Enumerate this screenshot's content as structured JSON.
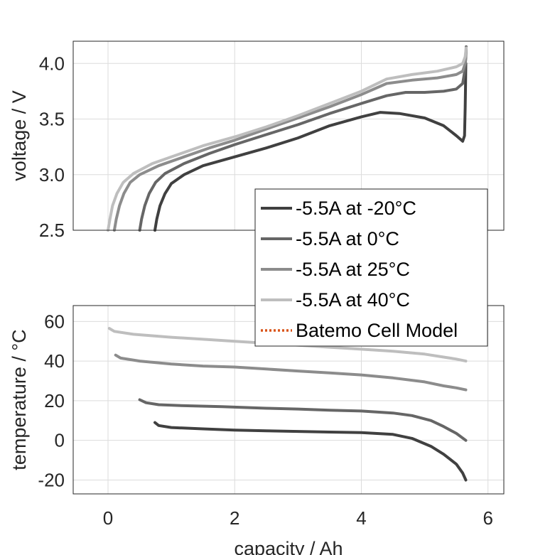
{
  "chart_data": [
    {
      "type": "line",
      "xlabel": "",
      "ylabel": "voltage / V",
      "xlim": [
        -0.55,
        6.25
      ],
      "ylim": [
        2.5,
        4.2
      ],
      "xticks": [
        "0",
        "2",
        "4",
        "6"
      ],
      "yticks": [
        "2.5",
        "3.0",
        "3.5",
        "4.0"
      ],
      "grid": true,
      "legend_position": "bottom-right",
      "series": [
        {
          "name": "-5.5A at -20°C",
          "color": "#404040",
          "x": [
            0.74,
            0.77,
            0.82,
            0.9,
            1.0,
            1.2,
            1.5,
            2.0,
            2.5,
            3.0,
            3.5,
            4.0,
            4.3,
            4.6,
            5.0,
            5.3,
            5.5,
            5.6,
            5.63,
            5.64,
            5.645,
            5.65
          ],
          "y": [
            2.5,
            2.6,
            2.72,
            2.83,
            2.92,
            3.0,
            3.08,
            3.16,
            3.24,
            3.33,
            3.44,
            3.52,
            3.56,
            3.55,
            3.51,
            3.44,
            3.35,
            3.3,
            3.35,
            3.6,
            3.8,
            4.0
          ]
        },
        {
          "name": "-5.5A at 0°C",
          "color": "#666666",
          "x": [
            0.5,
            0.53,
            0.58,
            0.65,
            0.75,
            0.9,
            1.2,
            1.6,
            2.0,
            2.5,
            3.0,
            3.5,
            4.0,
            4.4,
            4.7,
            5.0,
            5.3,
            5.5,
            5.6,
            5.63,
            5.65,
            5.655
          ],
          "y": [
            2.5,
            2.6,
            2.72,
            2.83,
            2.93,
            3.01,
            3.1,
            3.19,
            3.27,
            3.36,
            3.45,
            3.55,
            3.64,
            3.71,
            3.74,
            3.74,
            3.75,
            3.77,
            3.82,
            3.92,
            4.05,
            4.15
          ]
        },
        {
          "name": "-5.5A at 25°C",
          "color": "#8c8c8c",
          "x": [
            0.1,
            0.13,
            0.18,
            0.25,
            0.35,
            0.5,
            0.8,
            1.2,
            1.6,
            2.0,
            2.5,
            3.0,
            3.5,
            4.0,
            4.4,
            4.8,
            5.2,
            5.5,
            5.6,
            5.64,
            5.655
          ],
          "y": [
            2.5,
            2.6,
            2.72,
            2.83,
            2.93,
            3.0,
            3.08,
            3.16,
            3.24,
            3.31,
            3.41,
            3.51,
            3.61,
            3.72,
            3.82,
            3.85,
            3.87,
            3.9,
            3.93,
            4.0,
            4.12
          ]
        },
        {
          "name": "-5.5A at 40°C",
          "color": "#bebebe",
          "x": [
            0.0,
            0.03,
            0.07,
            0.14,
            0.24,
            0.4,
            0.7,
            1.1,
            1.5,
            2.0,
            2.5,
            3.0,
            3.5,
            4.0,
            4.4,
            4.8,
            5.2,
            5.5,
            5.6,
            5.64,
            5.655
          ],
          "y": [
            2.5,
            2.6,
            2.72,
            2.83,
            2.93,
            3.01,
            3.1,
            3.18,
            3.26,
            3.34,
            3.43,
            3.53,
            3.64,
            3.75,
            3.86,
            3.9,
            3.93,
            3.97,
            4.0,
            4.06,
            4.14
          ]
        }
      ]
    },
    {
      "type": "line",
      "xlabel": "capacity / Ah",
      "ylabel": "temperature / °C",
      "xlim": [
        -0.55,
        6.25
      ],
      "ylim": [
        -27,
        68
      ],
      "xticks": [
        "0",
        "2",
        "4",
        "6"
      ],
      "yticks": [
        "-20",
        "0",
        "20",
        "40",
        "60"
      ],
      "grid": true,
      "series": [
        {
          "name": "-5.5A at -20°C",
          "color": "#404040",
          "x": [
            0.74,
            0.8,
            1.0,
            1.5,
            2.0,
            2.5,
            3.0,
            3.5,
            4.0,
            4.5,
            4.8,
            5.1,
            5.3,
            5.5,
            5.6,
            5.65
          ],
          "y": [
            9,
            7.5,
            6.5,
            5.8,
            5.2,
            4.8,
            4.5,
            4.2,
            3.9,
            3.0,
            1.0,
            -3.0,
            -7.0,
            -12.0,
            -16.5,
            -20.0
          ]
        },
        {
          "name": "-5.5A at 0°C",
          "color": "#666666",
          "x": [
            0.5,
            0.6,
            0.8,
            1.2,
            1.8,
            2.5,
            3.0,
            3.5,
            4.0,
            4.5,
            4.8,
            5.1,
            5.3,
            5.5,
            5.65
          ],
          "y": [
            20.5,
            19.0,
            18.0,
            17.5,
            17.0,
            16.2,
            15.8,
            15.2,
            14.8,
            13.8,
            12.5,
            10.0,
            7.0,
            3.5,
            0.0
          ]
        },
        {
          "name": "-5.5A at 25°C",
          "color": "#8c8c8c",
          "x": [
            0.12,
            0.2,
            0.5,
            1.0,
            1.5,
            2.0,
            2.5,
            3.0,
            3.5,
            4.0,
            4.5,
            5.0,
            5.3,
            5.5,
            5.65
          ],
          "y": [
            43.0,
            41.5,
            40.0,
            38.5,
            37.5,
            37.0,
            36.0,
            35.0,
            34.0,
            33.0,
            31.5,
            29.5,
            27.5,
            26.5,
            25.5
          ]
        },
        {
          "name": "-5.5A at 40°C",
          "color": "#bebebe",
          "x": [
            0.02,
            0.1,
            0.4,
            1.0,
            1.5,
            2.0,
            2.5,
            3.0,
            3.5,
            4.0,
            4.5,
            5.0,
            5.3,
            5.5,
            5.65
          ],
          "y": [
            56.5,
            55.0,
            53.5,
            52.0,
            51.0,
            50.0,
            49.0,
            48.0,
            47.0,
            46.0,
            45.0,
            43.5,
            42.0,
            41.0,
            40.0
          ]
        }
      ]
    }
  ],
  "legend": {
    "entries": [
      {
        "label": "-5.5A at -20°C",
        "color": "#404040",
        "style": "solid"
      },
      {
        "label": "-5.5A at 0°C",
        "color": "#666666",
        "style": "solid"
      },
      {
        "label": "-5.5A at 25°C",
        "color": "#8c8c8c",
        "style": "solid"
      },
      {
        "label": "-5.5A at 40°C",
        "color": "#bebebe",
        "style": "solid"
      },
      {
        "label": "Batemo Cell Model",
        "color": "#d95319",
        "style": "dotted"
      }
    ]
  }
}
